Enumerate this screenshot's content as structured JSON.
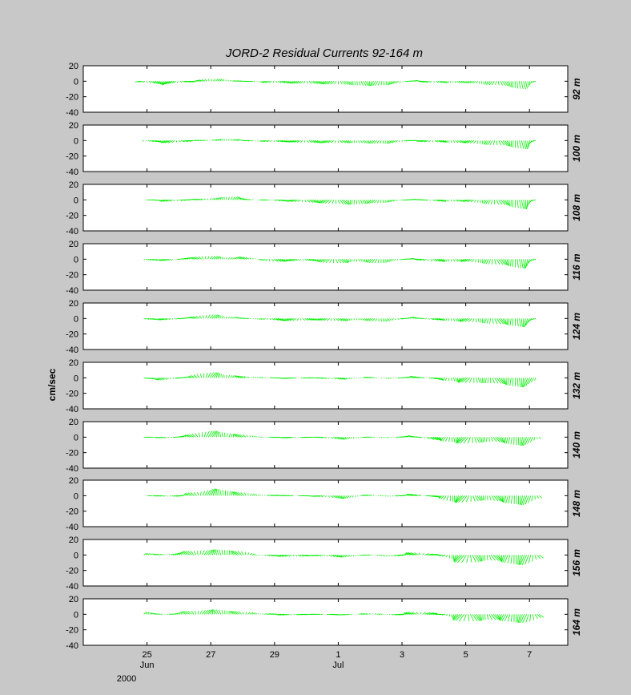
{
  "chart_data": {
    "type": "stick",
    "title": "JORD-2  Residual Currents  92-164 m",
    "ylabel": "cm/sec",
    "ylim": [
      -40,
      20
    ],
    "yticks": [
      20,
      0,
      -20,
      -40
    ],
    "grid": false,
    "stick_color": "#00ee00",
    "x_range_days": [
      23.0,
      38.2
    ],
    "x_unit_note": "days counted from Jun 1 2000",
    "xticks": [
      {
        "day": 25,
        "label": "25",
        "sublabel": "Jun"
      },
      {
        "day": 27,
        "label": "27",
        "sublabel": ""
      },
      {
        "day": 29,
        "label": "29",
        "sublabel": ""
      },
      {
        "day": 31,
        "label": "1",
        "sublabel": "Jul"
      },
      {
        "day": 33,
        "label": "3",
        "sublabel": ""
      },
      {
        "day": 35,
        "label": "5",
        "sublabel": ""
      },
      {
        "day": 37,
        "label": "7",
        "sublabel": ""
      }
    ],
    "year_label": "2000",
    "panels": [
      {
        "depth": "92 m",
        "start_day": 24.8,
        "end_day": 37.2,
        "u_env": [
          [
            24.8,
            6
          ],
          [
            26,
            7
          ],
          [
            27,
            4
          ],
          [
            28,
            -6
          ],
          [
            29,
            6
          ],
          [
            30,
            5
          ],
          [
            31,
            5
          ],
          [
            32,
            -4
          ],
          [
            33,
            5
          ],
          [
            34,
            6
          ],
          [
            35,
            -5
          ],
          [
            36,
            4
          ],
          [
            37,
            -3
          ]
        ],
        "v_env": [
          [
            24.8,
            -1
          ],
          [
            25.5,
            -5
          ],
          [
            26.2,
            -1
          ],
          [
            27.1,
            3
          ],
          [
            28,
            0
          ],
          [
            29,
            -2
          ],
          [
            30,
            -3
          ],
          [
            31,
            -4
          ],
          [
            32,
            -6
          ],
          [
            32.5,
            -5
          ],
          [
            33.4,
            1
          ],
          [
            34,
            -2
          ],
          [
            35,
            -2
          ],
          [
            36,
            -5
          ],
          [
            36.8,
            -10
          ],
          [
            37.2,
            -1
          ]
        ]
      },
      {
        "depth": "100 m",
        "start_day": 24.9,
        "end_day": 37.2,
        "u_env": [
          [
            24.9,
            5
          ],
          [
            26,
            6
          ],
          [
            27,
            4
          ],
          [
            28,
            -5
          ],
          [
            29,
            6
          ],
          [
            30,
            5
          ],
          [
            31,
            5
          ],
          [
            32,
            -4
          ],
          [
            33,
            5
          ],
          [
            34,
            7
          ],
          [
            35,
            -6
          ],
          [
            36,
            5
          ],
          [
            37,
            -4
          ]
        ],
        "v_env": [
          [
            24.9,
            -1
          ],
          [
            25.7,
            -3
          ],
          [
            26.5,
            0
          ],
          [
            27.5,
            2
          ],
          [
            28.5,
            -1
          ],
          [
            29.5,
            -2
          ],
          [
            30.5,
            -3
          ],
          [
            31.5,
            -3
          ],
          [
            32.5,
            -4
          ],
          [
            33.3,
            0
          ],
          [
            34,
            -2
          ],
          [
            35,
            -3
          ],
          [
            36,
            -6
          ],
          [
            36.9,
            -11
          ],
          [
            37.2,
            -1
          ]
        ]
      },
      {
        "depth": "108 m",
        "start_day": 24.9,
        "end_day": 37.2,
        "u_env": [
          [
            24.9,
            5
          ],
          [
            26,
            6
          ],
          [
            27,
            4
          ],
          [
            28,
            -5
          ],
          [
            29,
            6
          ],
          [
            30,
            5
          ],
          [
            31,
            5
          ],
          [
            32,
            -4
          ],
          [
            33,
            5
          ],
          [
            34,
            7
          ],
          [
            35,
            -6
          ],
          [
            36,
            5
          ],
          [
            37,
            -4
          ]
        ],
        "v_env": [
          [
            24.9,
            0
          ],
          [
            25.7,
            -2
          ],
          [
            26.5,
            1
          ],
          [
            27.7,
            4
          ],
          [
            28.5,
            0
          ],
          [
            29.5,
            -2
          ],
          [
            30.5,
            -4
          ],
          [
            31.3,
            -6
          ],
          [
            32.3,
            -4
          ],
          [
            33.4,
            1
          ],
          [
            34.2,
            -2
          ],
          [
            35,
            -2
          ],
          [
            36,
            -6
          ],
          [
            36.9,
            -12
          ],
          [
            37.2,
            -1
          ]
        ]
      },
      {
        "depth": "116 m",
        "start_day": 24.9,
        "end_day": 37.2,
        "u_env": [
          [
            24.9,
            4
          ],
          [
            26,
            5
          ],
          [
            27,
            4
          ],
          [
            28,
            -5
          ],
          [
            29,
            6
          ],
          [
            30,
            5
          ],
          [
            31,
            5
          ],
          [
            32,
            -4
          ],
          [
            33,
            5
          ],
          [
            34,
            7
          ],
          [
            35,
            -6
          ],
          [
            36,
            5
          ],
          [
            37,
            -4
          ]
        ],
        "v_env": [
          [
            24.9,
            -1
          ],
          [
            25.6,
            -2
          ],
          [
            26.3,
            2
          ],
          [
            27,
            4
          ],
          [
            27.6,
            2
          ],
          [
            28,
            3
          ],
          [
            29,
            -3
          ],
          [
            30,
            -2
          ],
          [
            31,
            -5
          ],
          [
            31.6,
            -3
          ],
          [
            32.3,
            -5
          ],
          [
            33.3,
            1
          ],
          [
            34,
            -3
          ],
          [
            35,
            -3
          ],
          [
            36,
            -7
          ],
          [
            36.9,
            -12
          ],
          [
            37.2,
            -1
          ]
        ]
      },
      {
        "depth": "124 m",
        "start_day": 24.9,
        "end_day": 37.2,
        "u_env": [
          [
            24.9,
            4
          ],
          [
            26,
            5
          ],
          [
            27,
            4
          ],
          [
            28,
            -5
          ],
          [
            29,
            6
          ],
          [
            30,
            5
          ],
          [
            31,
            5
          ],
          [
            32,
            -4
          ],
          [
            33,
            5
          ],
          [
            34,
            7
          ],
          [
            35,
            -6
          ],
          [
            36,
            5
          ],
          [
            37,
            -4
          ]
        ],
        "v_env": [
          [
            24.9,
            -1
          ],
          [
            25.6,
            -2
          ],
          [
            26.4,
            2
          ],
          [
            27,
            5
          ],
          [
            27.7,
            2
          ],
          [
            28.5,
            -1
          ],
          [
            29.3,
            -3
          ],
          [
            30.3,
            -2
          ],
          [
            31,
            -3
          ],
          [
            31.7,
            -2
          ],
          [
            32.4,
            -4
          ],
          [
            33.4,
            2
          ],
          [
            34,
            -2
          ],
          [
            35,
            -4
          ],
          [
            36,
            -7
          ],
          [
            36.9,
            -11
          ],
          [
            37.2,
            -1
          ]
        ]
      },
      {
        "depth": "132 m",
        "start_day": 24.9,
        "end_day": 37.2,
        "u_env": [
          [
            24.9,
            4
          ],
          [
            26,
            5
          ],
          [
            27,
            4
          ],
          [
            28,
            -5
          ],
          [
            29,
            6
          ],
          [
            30,
            5
          ],
          [
            31,
            5
          ],
          [
            32,
            -4
          ],
          [
            33,
            5
          ],
          [
            34,
            8
          ],
          [
            35,
            -7
          ],
          [
            36,
            5
          ],
          [
            37,
            -4
          ]
        ],
        "v_env": [
          [
            24.9,
            -1
          ],
          [
            25.5,
            -3
          ],
          [
            26.2,
            1
          ],
          [
            27,
            7
          ],
          [
            27.7,
            3
          ],
          [
            28.5,
            1
          ],
          [
            29.3,
            -1
          ],
          [
            30.2,
            0
          ],
          [
            31.1,
            -2
          ],
          [
            32,
            1
          ],
          [
            32.6,
            -1
          ],
          [
            33.4,
            2
          ],
          [
            34.2,
            -3
          ],
          [
            35,
            -6
          ],
          [
            35.8,
            -7
          ],
          [
            36.9,
            -12
          ],
          [
            37.3,
            -2
          ]
        ]
      },
      {
        "depth": "140 m",
        "start_day": 24.9,
        "end_day": 37.3,
        "u_env": [
          [
            24.9,
            4
          ],
          [
            26,
            5
          ],
          [
            27,
            4
          ],
          [
            28,
            -5
          ],
          [
            29,
            6
          ],
          [
            30,
            5
          ],
          [
            31,
            5
          ],
          [
            32,
            -4
          ],
          [
            33,
            5
          ],
          [
            34,
            8
          ],
          [
            35,
            -7
          ],
          [
            36,
            5
          ],
          [
            37,
            -4
          ]
        ],
        "v_env": [
          [
            24.9,
            0
          ],
          [
            25.6,
            -1
          ],
          [
            26.3,
            3
          ],
          [
            27,
            8
          ],
          [
            27.8,
            4
          ],
          [
            28.7,
            0
          ],
          [
            29.5,
            -1
          ],
          [
            30.3,
            0
          ],
          [
            31.1,
            -3
          ],
          [
            32,
            0
          ],
          [
            32.5,
            -1
          ],
          [
            33.3,
            2
          ],
          [
            34,
            -4
          ],
          [
            35,
            -8
          ],
          [
            35.8,
            -6
          ],
          [
            36.9,
            -11
          ],
          [
            37.3,
            -2
          ]
        ]
      },
      {
        "depth": "148 m",
        "start_day": 25.0,
        "end_day": 37.3,
        "u_env": [
          [
            25,
            4
          ],
          [
            26,
            5
          ],
          [
            27,
            4
          ],
          [
            28,
            -5
          ],
          [
            29,
            6
          ],
          [
            30,
            5
          ],
          [
            31,
            5
          ],
          [
            32,
            -4
          ],
          [
            33,
            6
          ],
          [
            34,
            8
          ],
          [
            35,
            -7
          ],
          [
            36,
            5
          ],
          [
            37,
            -4
          ]
        ],
        "v_env": [
          [
            25,
            0
          ],
          [
            25.8,
            -1
          ],
          [
            26.5,
            4
          ],
          [
            27.1,
            9
          ],
          [
            27.8,
            5
          ],
          [
            28.6,
            1
          ],
          [
            29.5,
            0
          ],
          [
            30.4,
            -1
          ],
          [
            31.1,
            -4
          ],
          [
            32,
            1
          ],
          [
            32.6,
            -1
          ],
          [
            33.4,
            2
          ],
          [
            34,
            -2
          ],
          [
            34.8,
            -9
          ],
          [
            35.6,
            -6
          ],
          [
            36.9,
            -12
          ],
          [
            37.3,
            -3
          ]
        ]
      },
      {
        "depth": "156 m",
        "start_day": 24.9,
        "end_day": 37.3,
        "u_env": [
          [
            24.9,
            3
          ],
          [
            26,
            4
          ],
          [
            27,
            4
          ],
          [
            28,
            -5
          ],
          [
            29,
            6
          ],
          [
            30,
            5
          ],
          [
            31,
            5
          ],
          [
            32,
            -4
          ],
          [
            33,
            6
          ],
          [
            34,
            8
          ],
          [
            35,
            -8
          ],
          [
            36,
            6
          ],
          [
            37,
            -5
          ]
        ],
        "v_env": [
          [
            24.9,
            2
          ],
          [
            25.6,
            1
          ],
          [
            26.3,
            5
          ],
          [
            27.2,
            7
          ],
          [
            27.9,
            5
          ],
          [
            28.6,
            -1
          ],
          [
            29.4,
            -2
          ],
          [
            30.3,
            -1
          ],
          [
            31.1,
            -3
          ],
          [
            32,
            0
          ],
          [
            32.6,
            -2
          ],
          [
            33.4,
            3
          ],
          [
            34.1,
            0
          ],
          [
            35,
            -10
          ],
          [
            35.7,
            -7
          ],
          [
            36.9,
            -13
          ],
          [
            37.3,
            -4
          ]
        ]
      },
      {
        "depth": "164 m",
        "start_day": 24.9,
        "end_day": 37.3,
        "u_env": [
          [
            24.9,
            3
          ],
          [
            26,
            4
          ],
          [
            27,
            4
          ],
          [
            28,
            -5
          ],
          [
            29,
            6
          ],
          [
            30,
            5
          ],
          [
            31,
            5
          ],
          [
            32,
            -4
          ],
          [
            33,
            6
          ],
          [
            34,
            8
          ],
          [
            35,
            -8
          ],
          [
            36,
            6
          ],
          [
            37,
            -5
          ]
        ],
        "v_env": [
          [
            24.9,
            3
          ],
          [
            25.6,
            0
          ],
          [
            26.3,
            4
          ],
          [
            27.1,
            6
          ],
          [
            27.8,
            4
          ],
          [
            28.6,
            1
          ],
          [
            29.4,
            -1
          ],
          [
            30.3,
            0
          ],
          [
            31.1,
            -1
          ],
          [
            32,
            1
          ],
          [
            32.7,
            -1
          ],
          [
            33.5,
            3
          ],
          [
            34.2,
            0
          ],
          [
            35,
            -9
          ],
          [
            35.8,
            -7
          ],
          [
            36.9,
            -11
          ],
          [
            37.3,
            -4
          ]
        ]
      }
    ]
  }
}
